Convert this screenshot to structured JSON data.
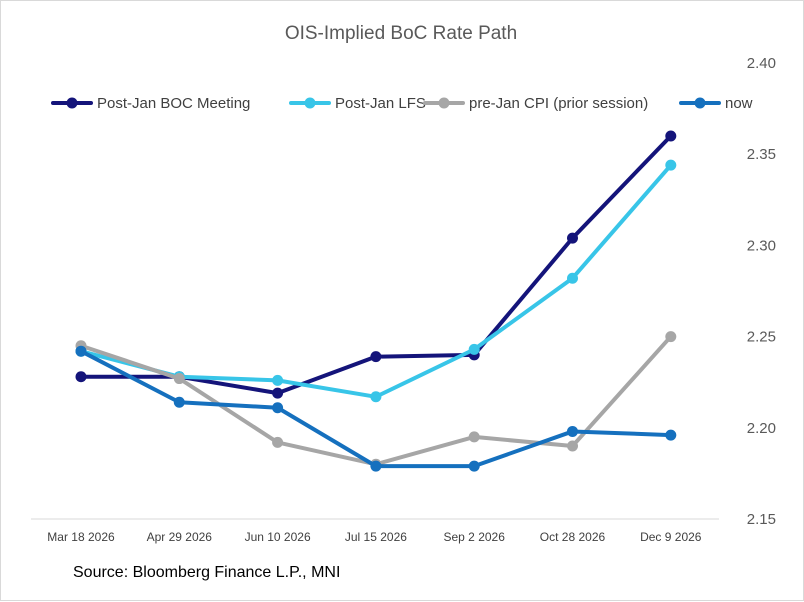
{
  "chart_data": {
    "type": "line",
    "title": "OIS-Implied BoC Rate Path",
    "categories": [
      "Mar 18 2026",
      "Apr 29 2026",
      "Jun 10 2026",
      "Jul 15 2026",
      "Sep 2 2026",
      "Oct 28 2026",
      "Dec 9 2026"
    ],
    "series": [
      {
        "name": "Post-Jan BOC Meeting",
        "color": "#14147a",
        "values": [
          2.228,
          2.228,
          2.219,
          2.239,
          2.24,
          2.304,
          2.36
        ]
      },
      {
        "name": "Post-Jan LFS",
        "color": "#38c5e8",
        "values": [
          2.242,
          2.228,
          2.226,
          2.217,
          2.243,
          2.282,
          2.344
        ]
      },
      {
        "name": "pre-Jan CPI (prior session)",
        "color": "#a6a6a6",
        "values": [
          2.245,
          2.227,
          2.192,
          2.18,
          2.195,
          2.19,
          2.25
        ]
      },
      {
        "name": "now",
        "color": "#1570be",
        "values": [
          2.242,
          2.214,
          2.211,
          2.179,
          2.179,
          2.198,
          2.196
        ]
      }
    ],
    "y_axis": {
      "position": "right",
      "min": 2.15,
      "max": 2.4,
      "ticks": [
        "2.15",
        "2.20",
        "2.25",
        "2.30",
        "2.35",
        "2.40"
      ]
    },
    "legend": {
      "position": "top"
    },
    "grid": false
  },
  "source": "Source: Bloomberg Finance L.P., MNI"
}
